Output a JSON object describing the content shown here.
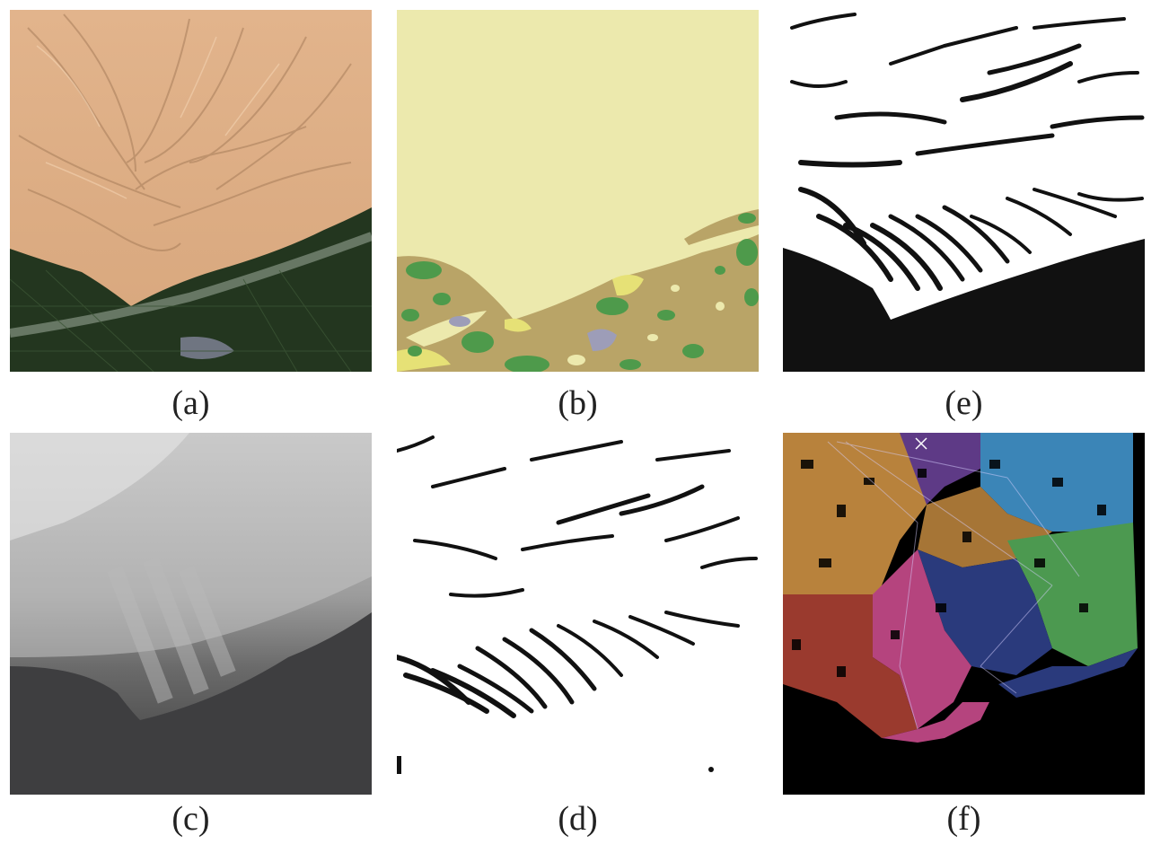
{
  "panels": [
    {
      "id": "a",
      "caption": "(a)",
      "content": "satellite-image"
    },
    {
      "id": "b",
      "caption": "(b)",
      "content": "land-cover-map"
    },
    {
      "id": "e",
      "caption": "(e)",
      "content": "binary-mask"
    },
    {
      "id": "c",
      "caption": "(c)",
      "content": "elevation-grayscale"
    },
    {
      "id": "d",
      "caption": "(d)",
      "content": "binary-mask"
    },
    {
      "id": "f",
      "caption": "(f)",
      "content": "region-segmentation-graph"
    }
  ],
  "colors": {
    "desert": "#d9ab82",
    "vegetation": "#1f3320",
    "landcover_barren": "#ece9ad",
    "landcover_tan": "#b9a467",
    "landcover_green": "#4e9a4b",
    "landcover_yellow": "#e6e176",
    "landcover_water": "#9d9db8",
    "mask_black": "#111111",
    "region_orange": "#b8823c",
    "region_blue": "#3b85b7",
    "region_green": "#4c9950",
    "region_navy": "#2a3a7c",
    "region_pink": "#b5447e",
    "region_red": "#9a3a2e",
    "region_purple": "#5e3a86"
  }
}
